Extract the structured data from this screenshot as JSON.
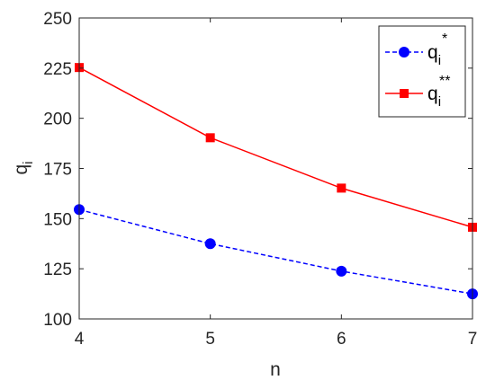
{
  "chart_data": {
    "type": "line",
    "x": [
      4,
      5,
      6,
      7
    ],
    "xlim": [
      4,
      7
    ],
    "ylim": [
      100,
      250
    ],
    "xticks": [
      "4",
      "5",
      "6",
      "7"
    ],
    "yticks": [
      "100",
      "125",
      "150",
      "175",
      "200",
      "225",
      "250"
    ],
    "xlabel": "n",
    "ylabel": {
      "base": "q",
      "sub": "i"
    },
    "grid": false,
    "legend_position": "top-right",
    "series": [
      {
        "name": {
          "base": "q",
          "sub": "i",
          "sup": "*"
        },
        "values": [
          154.5,
          137.5,
          123.8,
          112.5
        ],
        "color": "#0000ff",
        "line": "dashed",
        "marker": "circle"
      },
      {
        "name": {
          "base": "q",
          "sub": "i",
          "sup": "**"
        },
        "values": [
          225.3,
          190.3,
          165.2,
          145.7
        ],
        "color": "#ff0000",
        "line": "solid",
        "marker": "square"
      }
    ]
  }
}
